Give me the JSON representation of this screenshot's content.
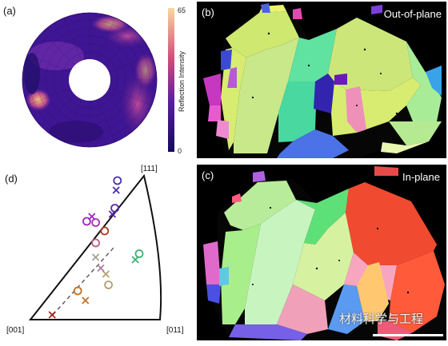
{
  "panel_a": {
    "label": "(a)",
    "colorbar": {
      "title": "Reflection Intensity",
      "max": "65",
      "min": "0"
    },
    "colors": {
      "low": "#1a0a5e",
      "mid": "#7a2a9a",
      "high": "#f6c873"
    }
  },
  "panel_b": {
    "label": "(b)",
    "title": "Out-of-plane"
  },
  "panel_c": {
    "label": "(c)",
    "title": "In-plane",
    "watermark": "材料科学与工程"
  },
  "panel_d": {
    "label": "(d)",
    "corner_111": "[111]",
    "corner_001": "[001]",
    "corner_011": "[011]"
  },
  "chart_data": {
    "type": "scatter",
    "title": "",
    "markers": [
      {
        "shape": "x",
        "color": "#b02020",
        "u": 0.17,
        "v": 0.04
      },
      {
        "shape": "x",
        "color": "#c77020",
        "u": 0.43,
        "v": 0.16
      },
      {
        "shape": "o",
        "color": "#c77020",
        "u": 0.37,
        "v": 0.24
      },
      {
        "shape": "o",
        "color": "#b7a070",
        "u": 0.61,
        "v": 0.29
      },
      {
        "shape": "x",
        "color": "#b7a070",
        "u": 0.59,
        "v": 0.38
      },
      {
        "shape": "x",
        "color": "#a7a090",
        "u": 0.51,
        "v": 0.52
      },
      {
        "shape": "x",
        "color": "#b07aa0",
        "u": 0.55,
        "v": 0.43
      },
      {
        "shape": "o",
        "color": "#c06080",
        "u": 0.51,
        "v": 0.64
      },
      {
        "shape": "o",
        "color": "#b03a20",
        "u": 0.58,
        "v": 0.74
      },
      {
        "shape": "o",
        "color": "#b030b0",
        "u": 0.51,
        "v": 0.81
      },
      {
        "shape": "o",
        "color": "#a028c0",
        "u": 0.44,
        "v": 0.82
      },
      {
        "shape": "x",
        "color": "#a028c0",
        "u": 0.48,
        "v": 0.86
      },
      {
        "shape": "x",
        "color": "#5a2ab0",
        "u": 0.64,
        "v": 0.88
      },
      {
        "shape": "o",
        "color": "#5a2ab0",
        "u": 0.66,
        "v": 0.93
      },
      {
        "shape": "x",
        "color": "#4a30b0",
        "u": 0.67,
        "v": 1.08
      },
      {
        "shape": "o",
        "color": "#4a30b0",
        "u": 0.68,
        "v": 1.16
      },
      {
        "shape": "o",
        "color": "#40b070",
        "u": 0.85,
        "v": 0.55
      },
      {
        "shape": "x",
        "color": "#40b070",
        "u": 0.82,
        "v": 0.5
      }
    ]
  }
}
